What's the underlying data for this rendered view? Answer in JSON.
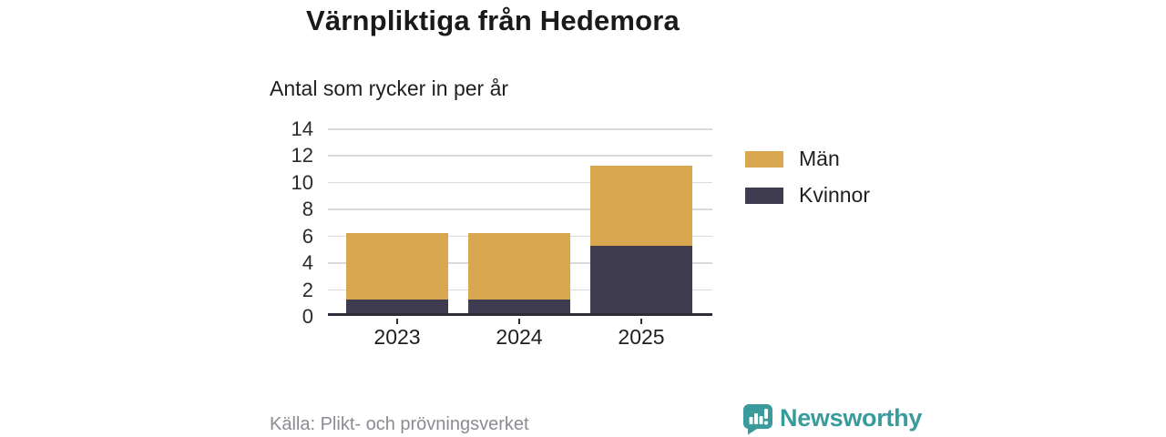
{
  "title": "Värnpliktiga från Hedemora",
  "subtitle": "Antal som rycker in per år",
  "source": "Källa: Plikt- och prövningsverket",
  "brand": {
    "name": "Newsworthy",
    "color": "#3a9b9c",
    "icon": "newsworthy-speech-bubble-bar-chart-icon"
  },
  "colors": {
    "bar_men": "#d9a74f",
    "bar_women": "#3e3c4e",
    "axis_line": "#2e2c38",
    "gridline": "#dadadd",
    "text": "#1f1f1f",
    "muted_text": "#8b8b91"
  },
  "chart_data": {
    "type": "bar",
    "stacked": true,
    "title": "Värnpliktiga från Hedemora",
    "subtitle": "Antal som rycker in per år",
    "categories": [
      "2023",
      "2024",
      "2025"
    ],
    "series": [
      {
        "name": "Kvinnor",
        "color": "#3e3c4e",
        "values": [
          1,
          1,
          5
        ]
      },
      {
        "name": "Män",
        "color": "#d9a74f",
        "values": [
          5,
          5,
          6
        ]
      }
    ],
    "legend": [
      {
        "label": "Män",
        "color": "#d9a74f"
      },
      {
        "label": "Kvinnor",
        "color": "#3e3c4e"
      }
    ],
    "legend_position": "right",
    "xlabel": "",
    "ylabel": "",
    "ylim": [
      0,
      14
    ],
    "yticks": [
      0,
      2,
      4,
      6,
      8,
      10,
      12,
      14
    ],
    "grid": true
  }
}
